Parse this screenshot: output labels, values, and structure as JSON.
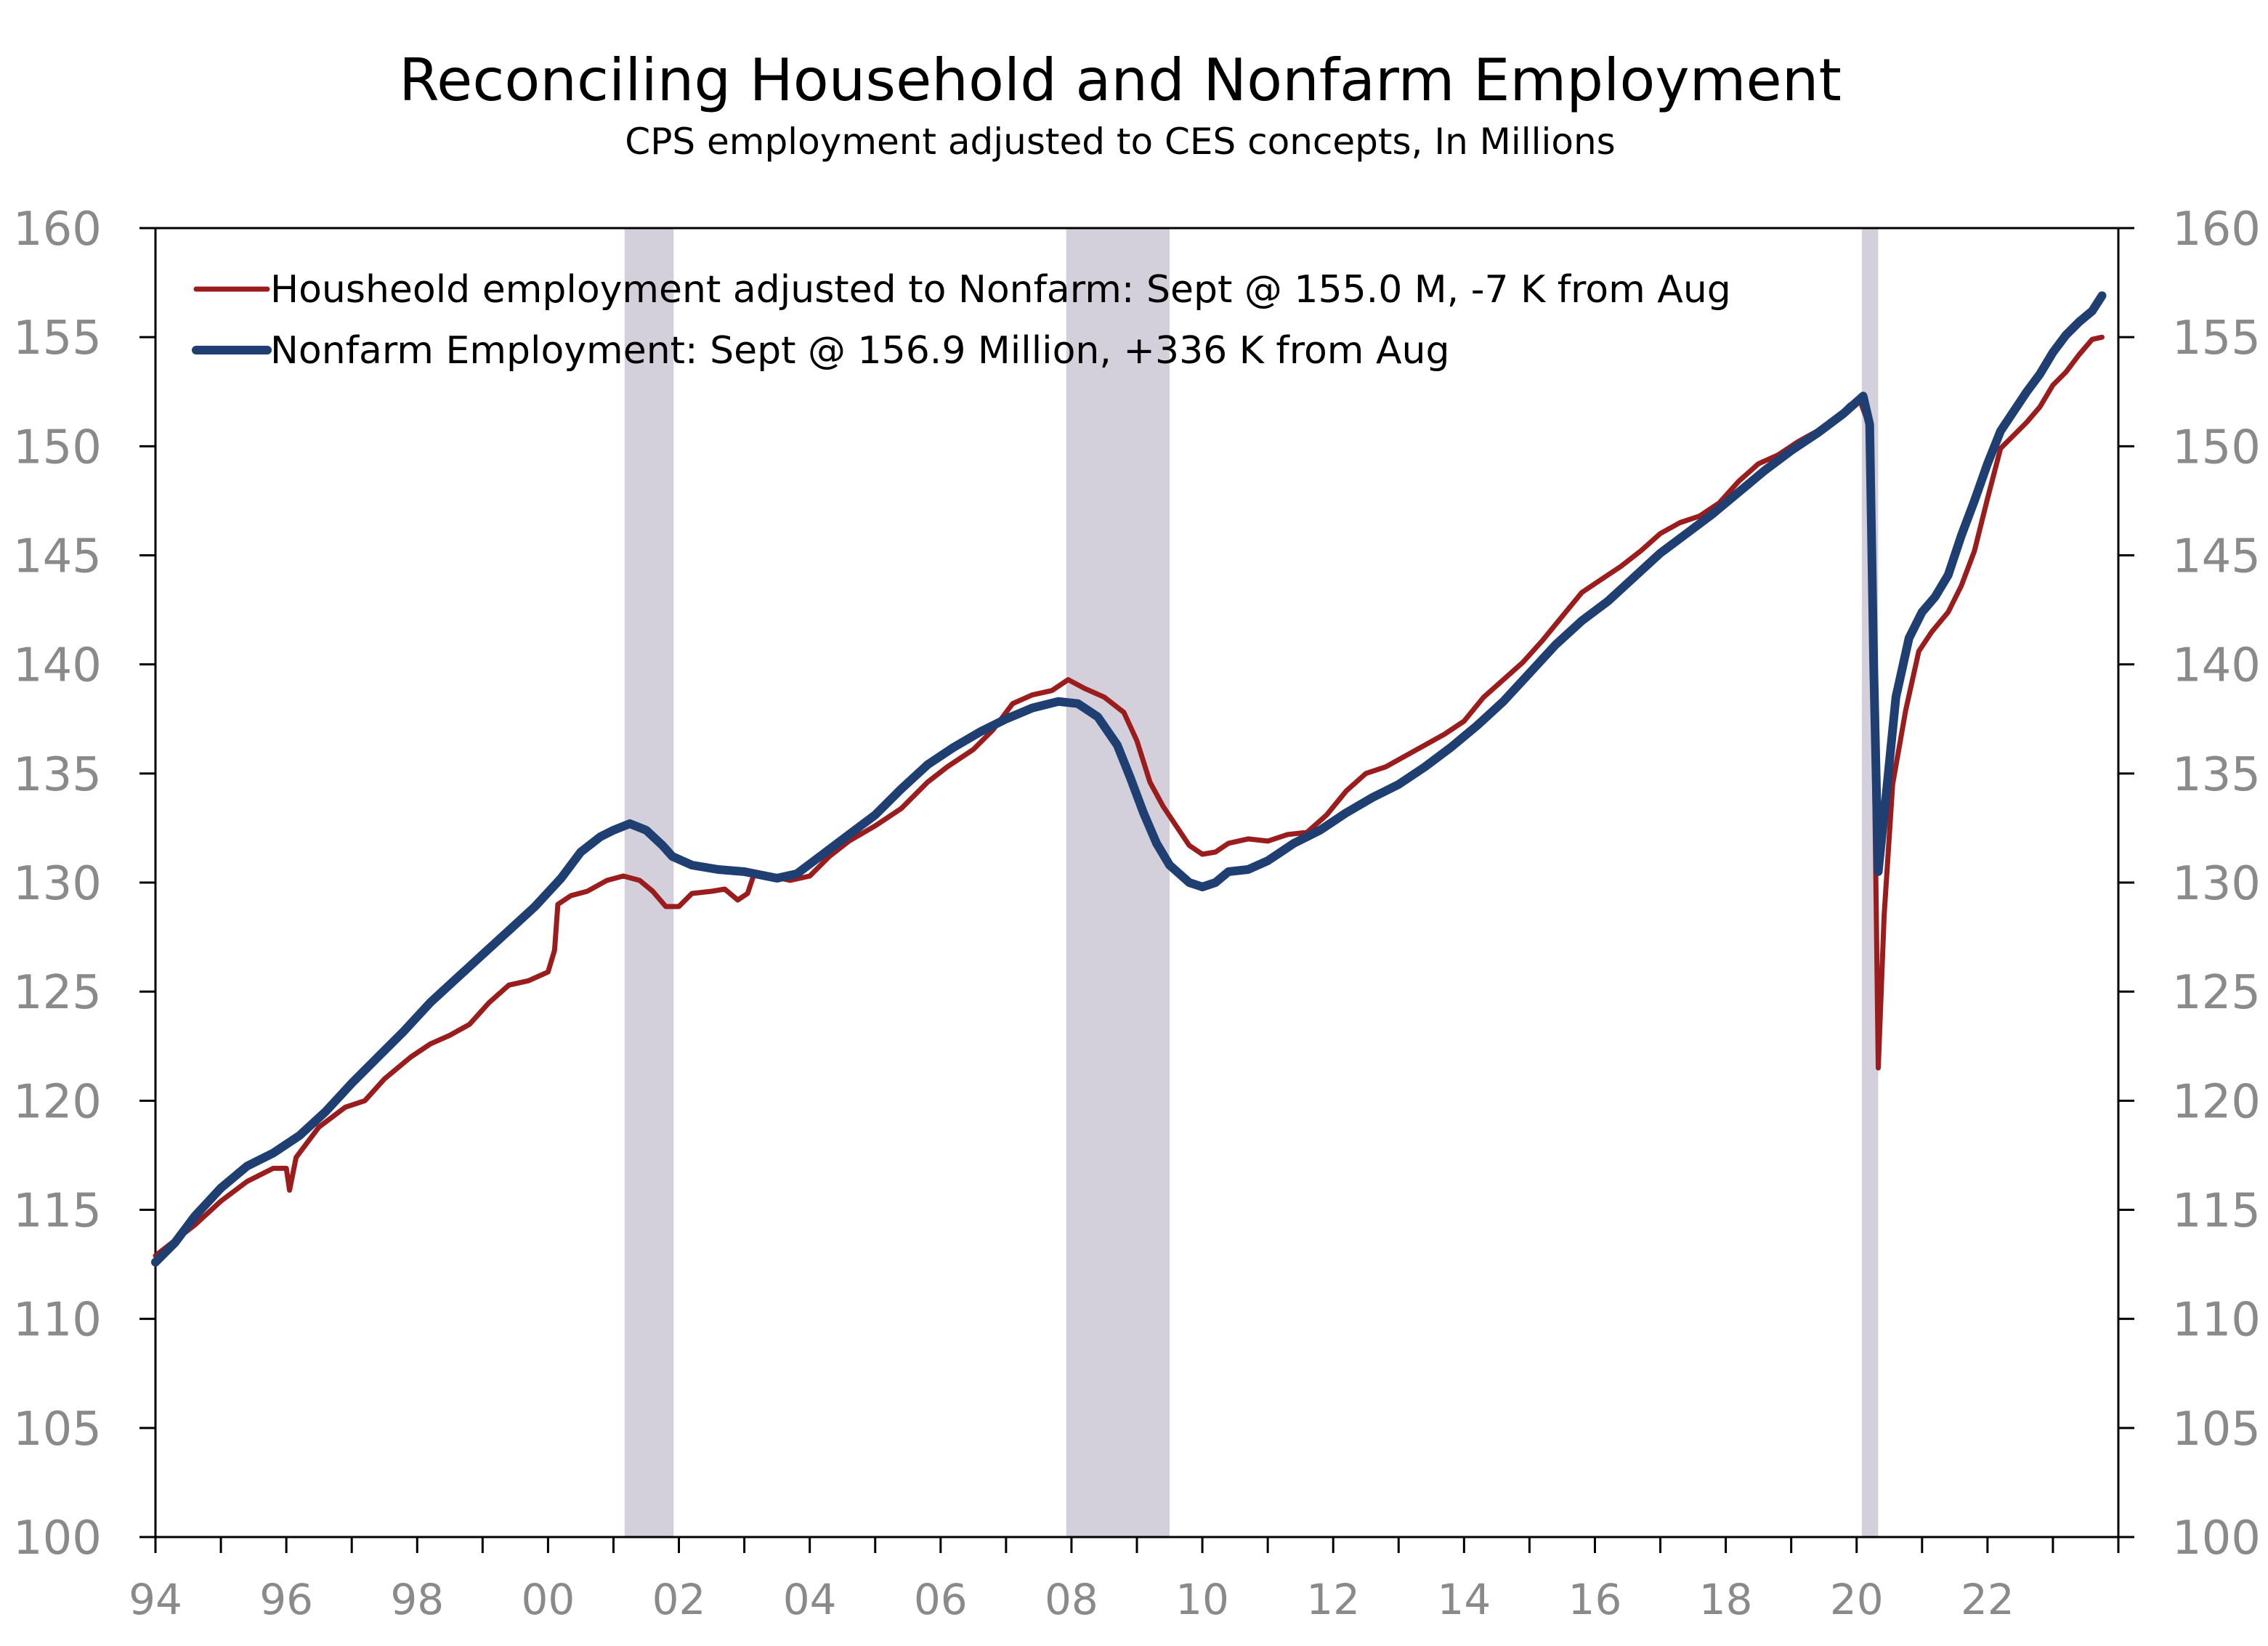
{
  "chart_data": {
    "type": "line",
    "title": "Reconciling Household and Nonfarm Employment",
    "subtitle": "CPS employment adjusted to CES concepts, In Millions",
    "xlabel": "",
    "ylabel": "",
    "xlim": [
      1994.0,
      2024.0
    ],
    "ylim": [
      100,
      160
    ],
    "y_ticks": [
      100,
      105,
      110,
      115,
      120,
      125,
      130,
      135,
      140,
      145,
      150,
      155,
      160
    ],
    "y_tick_labels": [
      "100",
      "105",
      "110",
      "115",
      "120",
      "125",
      "130",
      "135",
      "140",
      "145",
      "150",
      "155",
      "160"
    ],
    "x_tick_labels": [
      {
        "x": 1994,
        "label": "94"
      },
      {
        "x": 1996,
        "label": "96"
      },
      {
        "x": 1998,
        "label": "98"
      },
      {
        "x": 2000,
        "label": "00"
      },
      {
        "x": 2002,
        "label": "02"
      },
      {
        "x": 2004,
        "label": "04"
      },
      {
        "x": 2006,
        "label": "06"
      },
      {
        "x": 2008,
        "label": "08"
      },
      {
        "x": 2010,
        "label": "10"
      },
      {
        "x": 2012,
        "label": "12"
      },
      {
        "x": 2014,
        "label": "14"
      },
      {
        "x": 2016,
        "label": "16"
      },
      {
        "x": 2018,
        "label": "18"
      },
      {
        "x": 2020,
        "label": "20"
      },
      {
        "x": 2022,
        "label": "22"
      }
    ],
    "minor_x_ticks_per_major": 2,
    "recessions": [
      {
        "start": 2001.17,
        "end": 2001.92
      },
      {
        "start": 2007.92,
        "end": 2009.5
      },
      {
        "start": 2020.08,
        "end": 2020.33
      }
    ],
    "recession_color": "#d4d0db",
    "legend_placement": "top-left",
    "series": [
      {
        "name": "Housheold employment adjusted to Nonfarm: Sept @ 155.0 M, -7 K from Aug",
        "color": "#9b1c1c",
        "points": [
          [
            1994.0,
            112.9
          ],
          [
            1994.3,
            113.6
          ],
          [
            1994.6,
            114.3
          ],
          [
            1995.0,
            115.4
          ],
          [
            1995.4,
            116.3
          ],
          [
            1995.8,
            116.9
          ],
          [
            1996.0,
            116.9
          ],
          [
            1996.05,
            115.9
          ],
          [
            1996.15,
            117.4
          ],
          [
            1996.5,
            118.8
          ],
          [
            1996.9,
            119.7
          ],
          [
            1997.2,
            120.0
          ],
          [
            1997.5,
            121.0
          ],
          [
            1997.9,
            122.0
          ],
          [
            1998.2,
            122.6
          ],
          [
            1998.5,
            123.0
          ],
          [
            1998.8,
            123.5
          ],
          [
            1999.1,
            124.5
          ],
          [
            1999.4,
            125.3
          ],
          [
            1999.7,
            125.5
          ],
          [
            2000.0,
            125.9
          ],
          [
            2000.1,
            126.9
          ],
          [
            2000.15,
            129.0
          ],
          [
            2000.35,
            129.4
          ],
          [
            2000.6,
            129.6
          ],
          [
            2000.9,
            130.1
          ],
          [
            2001.15,
            130.3
          ],
          [
            2001.4,
            130.1
          ],
          [
            2001.6,
            129.6
          ],
          [
            2001.8,
            128.9
          ],
          [
            2002.0,
            128.9
          ],
          [
            2002.2,
            129.5
          ],
          [
            2002.5,
            129.6
          ],
          [
            2002.7,
            129.7
          ],
          [
            2002.9,
            129.2
          ],
          [
            2003.05,
            129.5
          ],
          [
            2003.15,
            130.4
          ],
          [
            2003.4,
            130.3
          ],
          [
            2003.7,
            130.1
          ],
          [
            2004.0,
            130.3
          ],
          [
            2004.3,
            131.2
          ],
          [
            2004.6,
            131.9
          ],
          [
            2005.0,
            132.6
          ],
          [
            2005.4,
            133.4
          ],
          [
            2005.8,
            134.6
          ],
          [
            2006.1,
            135.3
          ],
          [
            2006.5,
            136.1
          ],
          [
            2006.8,
            137.0
          ],
          [
            2007.1,
            138.2
          ],
          [
            2007.4,
            138.6
          ],
          [
            2007.7,
            138.8
          ],
          [
            2007.95,
            139.3
          ],
          [
            2008.2,
            138.9
          ],
          [
            2008.5,
            138.5
          ],
          [
            2008.8,
            137.8
          ],
          [
            2009.0,
            136.5
          ],
          [
            2009.2,
            134.6
          ],
          [
            2009.4,
            133.5
          ],
          [
            2009.6,
            132.6
          ],
          [
            2009.8,
            131.7
          ],
          [
            2010.0,
            131.3
          ],
          [
            2010.2,
            131.4
          ],
          [
            2010.4,
            131.8
          ],
          [
            2010.7,
            132.0
          ],
          [
            2011.0,
            131.9
          ],
          [
            2011.3,
            132.2
          ],
          [
            2011.6,
            132.3
          ],
          [
            2011.9,
            133.1
          ],
          [
            2012.2,
            134.2
          ],
          [
            2012.5,
            135.0
          ],
          [
            2012.8,
            135.3
          ],
          [
            2013.1,
            135.8
          ],
          [
            2013.4,
            136.3
          ],
          [
            2013.7,
            136.8
          ],
          [
            2014.0,
            137.4
          ],
          [
            2014.3,
            138.5
          ],
          [
            2014.6,
            139.3
          ],
          [
            2014.9,
            140.1
          ],
          [
            2015.2,
            141.1
          ],
          [
            2015.5,
            142.2
          ],
          [
            2015.8,
            143.3
          ],
          [
            2016.1,
            143.9
          ],
          [
            2016.4,
            144.5
          ],
          [
            2016.7,
            145.2
          ],
          [
            2017.0,
            146.0
          ],
          [
            2017.3,
            146.5
          ],
          [
            2017.6,
            146.8
          ],
          [
            2017.9,
            147.4
          ],
          [
            2018.2,
            148.4
          ],
          [
            2018.5,
            149.2
          ],
          [
            2018.8,
            149.6
          ],
          [
            2019.1,
            150.2
          ],
          [
            2019.4,
            150.7
          ],
          [
            2019.7,
            151.3
          ],
          [
            2019.9,
            151.9
          ],
          [
            2020.05,
            152.1
          ],
          [
            2020.2,
            150.9
          ],
          [
            2020.26,
            138.0
          ],
          [
            2020.33,
            121.5
          ],
          [
            2020.42,
            128.5
          ],
          [
            2020.55,
            134.5
          ],
          [
            2020.75,
            137.9
          ],
          [
            2020.95,
            140.6
          ],
          [
            2021.15,
            141.5
          ],
          [
            2021.4,
            142.4
          ],
          [
            2021.6,
            143.6
          ],
          [
            2021.8,
            145.2
          ],
          [
            2022.0,
            147.6
          ],
          [
            2022.2,
            149.9
          ],
          [
            2022.4,
            150.5
          ],
          [
            2022.6,
            151.1
          ],
          [
            2022.8,
            151.8
          ],
          [
            2023.0,
            152.8
          ],
          [
            2023.2,
            153.4
          ],
          [
            2023.4,
            154.2
          ],
          [
            2023.6,
            154.9
          ],
          [
            2023.75,
            155.0
          ]
        ]
      },
      {
        "name": "Nonfarm Employment: Sept @ 156.9 Million, +336 K from Aug",
        "color": "#1f3f73",
        "points": [
          [
            1994.0,
            112.6
          ],
          [
            1994.3,
            113.5
          ],
          [
            1994.6,
            114.7
          ],
          [
            1995.0,
            116.0
          ],
          [
            1995.4,
            117.0
          ],
          [
            1995.8,
            117.6
          ],
          [
            1996.2,
            118.4
          ],
          [
            1996.6,
            119.5
          ],
          [
            1997.0,
            120.8
          ],
          [
            1997.4,
            122.0
          ],
          [
            1997.8,
            123.2
          ],
          [
            1998.2,
            124.5
          ],
          [
            1998.6,
            125.6
          ],
          [
            1999.0,
            126.7
          ],
          [
            1999.4,
            127.8
          ],
          [
            1999.8,
            128.9
          ],
          [
            2000.2,
            130.2
          ],
          [
            2000.5,
            131.4
          ],
          [
            2000.8,
            132.1
          ],
          [
            2001.0,
            132.4
          ],
          [
            2001.25,
            132.7
          ],
          [
            2001.5,
            132.4
          ],
          [
            2001.75,
            131.7
          ],
          [
            2001.9,
            131.2
          ],
          [
            2002.2,
            130.8
          ],
          [
            2002.6,
            130.6
          ],
          [
            2003.0,
            130.5
          ],
          [
            2003.5,
            130.2
          ],
          [
            2003.8,
            130.4
          ],
          [
            2004.2,
            131.3
          ],
          [
            2004.6,
            132.2
          ],
          [
            2005.0,
            133.1
          ],
          [
            2005.4,
            134.3
          ],
          [
            2005.8,
            135.4
          ],
          [
            2006.2,
            136.2
          ],
          [
            2006.6,
            136.9
          ],
          [
            2007.0,
            137.5
          ],
          [
            2007.4,
            138.0
          ],
          [
            2007.8,
            138.3
          ],
          [
            2008.1,
            138.2
          ],
          [
            2008.4,
            137.6
          ],
          [
            2008.7,
            136.3
          ],
          [
            2008.9,
            134.8
          ],
          [
            2009.1,
            133.2
          ],
          [
            2009.3,
            131.8
          ],
          [
            2009.5,
            130.8
          ],
          [
            2009.8,
            130.0
          ],
          [
            2010.0,
            129.8
          ],
          [
            2010.2,
            130.0
          ],
          [
            2010.4,
            130.5
          ],
          [
            2010.7,
            130.6
          ],
          [
            2011.0,
            131.0
          ],
          [
            2011.4,
            131.8
          ],
          [
            2011.8,
            132.4
          ],
          [
            2012.2,
            133.2
          ],
          [
            2012.6,
            133.9
          ],
          [
            2013.0,
            134.5
          ],
          [
            2013.4,
            135.3
          ],
          [
            2013.8,
            136.2
          ],
          [
            2014.2,
            137.2
          ],
          [
            2014.6,
            138.3
          ],
          [
            2015.0,
            139.6
          ],
          [
            2015.4,
            140.9
          ],
          [
            2015.8,
            142.0
          ],
          [
            2016.2,
            142.9
          ],
          [
            2016.6,
            144.0
          ],
          [
            2017.0,
            145.1
          ],
          [
            2017.4,
            146.0
          ],
          [
            2017.8,
            146.9
          ],
          [
            2018.2,
            147.9
          ],
          [
            2018.6,
            148.9
          ],
          [
            2019.0,
            149.8
          ],
          [
            2019.4,
            150.6
          ],
          [
            2019.8,
            151.5
          ],
          [
            2020.1,
            152.3
          ],
          [
            2020.2,
            151.0
          ],
          [
            2020.26,
            140.0
          ],
          [
            2020.33,
            130.5
          ],
          [
            2020.45,
            134.0
          ],
          [
            2020.6,
            138.5
          ],
          [
            2020.8,
            141.2
          ],
          [
            2021.0,
            142.4
          ],
          [
            2021.2,
            143.1
          ],
          [
            2021.4,
            144.1
          ],
          [
            2021.6,
            145.9
          ],
          [
            2021.8,
            147.5
          ],
          [
            2022.0,
            149.2
          ],
          [
            2022.2,
            150.7
          ],
          [
            2022.4,
            151.6
          ],
          [
            2022.6,
            152.5
          ],
          [
            2022.8,
            153.3
          ],
          [
            2023.0,
            154.3
          ],
          [
            2023.2,
            155.1
          ],
          [
            2023.4,
            155.7
          ],
          [
            2023.6,
            156.2
          ],
          [
            2023.75,
            156.9
          ]
        ]
      }
    ]
  }
}
